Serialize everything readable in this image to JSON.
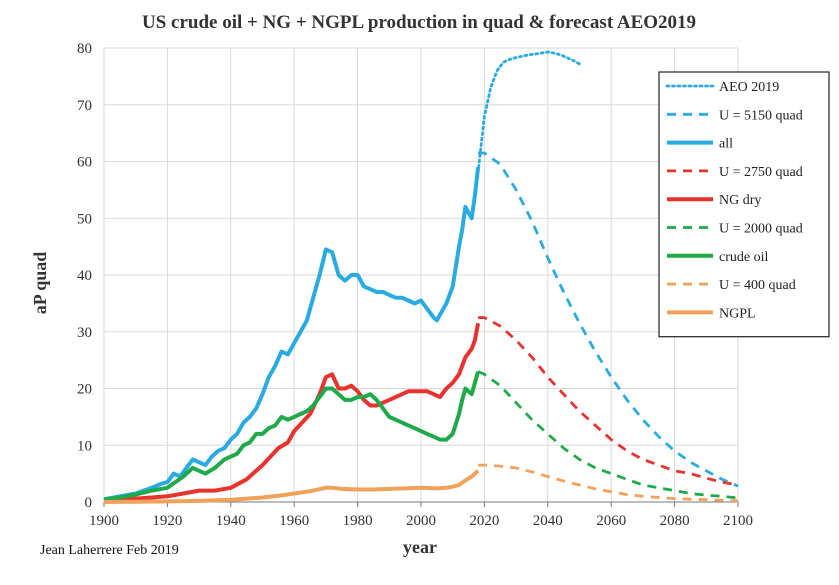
{
  "chart_data": {
    "type": "line",
    "title": "US crude oil + NG + NGPL production in quad & forecast AEO2019",
    "xlabel": "year",
    "ylabel": "aP quad",
    "credit": "Jean Laherrere Feb 2019",
    "xlim": [
      1900,
      2100
    ],
    "ylim": [
      0,
      80
    ],
    "x_ticks": [
      "1900",
      "1920",
      "1940",
      "1960",
      "1980",
      "2000",
      "2020",
      "2040",
      "2060",
      "2080",
      "2100"
    ],
    "y_ticks": [
      "0",
      "10",
      "20",
      "30",
      "40",
      "50",
      "60",
      "70",
      "80"
    ],
    "grid": true,
    "legend_position": "right",
    "series": [
      {
        "name": "AEO 2019",
        "color": "#29ABE2",
        "style": "dotted",
        "x": [
          2018,
          2019,
          2020,
          2022,
          2024,
          2026,
          2028,
          2030,
          2034,
          2038,
          2040,
          2042,
          2044,
          2046,
          2048,
          2050
        ],
        "y": [
          58,
          63,
          68,
          73,
          76,
          77.5,
          78,
          78.3,
          78.8,
          79.1,
          79.3,
          79.1,
          78.8,
          78.3,
          77.8,
          77.2
        ]
      },
      {
        "name": "U =  5150 quad",
        "color": "#29ABE2",
        "style": "dashed",
        "x": [
          2018,
          2020,
          2025,
          2030,
          2035,
          2040,
          2045,
          2050,
          2055,
          2060,
          2065,
          2070,
          2075,
          2080,
          2085,
          2090,
          2095,
          2100
        ],
        "y": [
          61.5,
          61.5,
          59.5,
          55,
          49.5,
          43,
          37,
          31.5,
          26.5,
          22,
          18,
          14.5,
          11.5,
          9,
          7,
          5.5,
          4,
          2.8
        ]
      },
      {
        "name": "all",
        "color": "#29ABE2",
        "style": "solid",
        "x": [
          1900,
          1905,
          1910,
          1915,
          1918,
          1920,
          1922,
          1924,
          1926,
          1928,
          1930,
          1932,
          1934,
          1936,
          1938,
          1940,
          1942,
          1944,
          1946,
          1948,
          1950,
          1952,
          1954,
          1956,
          1958,
          1960,
          1962,
          1964,
          1966,
          1968,
          1970,
          1972,
          1974,
          1976,
          1978,
          1980,
          1982,
          1984,
          1986,
          1988,
          1990,
          1992,
          1994,
          1996,
          1998,
          2000,
          2002,
          2004,
          2005,
          2006,
          2008,
          2010,
          2012,
          2013,
          2014,
          2015,
          2016,
          2017,
          2018
        ],
        "y": [
          0.5,
          1,
          1.5,
          2.5,
          3.2,
          3.5,
          5,
          4.5,
          6,
          7.5,
          7,
          6.5,
          8,
          9,
          9.5,
          11,
          12,
          14,
          15,
          16.5,
          19,
          22,
          24,
          26.5,
          26,
          28,
          30,
          32,
          36,
          40,
          44.5,
          44,
          40,
          39,
          40,
          40,
          38,
          37.5,
          37,
          37,
          36.5,
          36,
          36,
          35.5,
          35,
          35.5,
          34,
          32.5,
          32,
          33,
          35,
          38,
          45,
          48,
          52,
          51,
          50,
          54,
          59
        ]
      },
      {
        "name": "U = 2750 quad",
        "color": "#E8322E",
        "style": "dashed",
        "x": [
          2018,
          2020,
          2025,
          2030,
          2035,
          2040,
          2045,
          2050,
          2055,
          2060,
          2065,
          2070,
          2075,
          2080,
          2085,
          2090,
          2095,
          2100
        ],
        "y": [
          32.5,
          32.5,
          31,
          28.5,
          25.5,
          22,
          19,
          16,
          13.5,
          11,
          9,
          7.5,
          6.5,
          5.5,
          5,
          4.2,
          3.5,
          3
        ]
      },
      {
        "name": "NG dry",
        "color": "#E8322E",
        "style": "solid",
        "x": [
          1900,
          1905,
          1910,
          1915,
          1920,
          1925,
          1930,
          1935,
          1940,
          1945,
          1950,
          1955,
          1958,
          1960,
          1965,
          1968,
          1970,
          1972,
          1974,
          1976,
          1978,
          1980,
          1982,
          1984,
          1986,
          1988,
          1990,
          1994,
          1996,
          2000,
          2002,
          2004,
          2006,
          2008,
          2010,
          2012,
          2014,
          2016,
          2017,
          2018
        ],
        "y": [
          0.2,
          0.4,
          0.6,
          0.8,
          1,
          1.5,
          2,
          2,
          2.5,
          4,
          6.5,
          9.5,
          10.5,
          12.5,
          15.5,
          19,
          22,
          22.5,
          20,
          20,
          20.5,
          19.5,
          18,
          17,
          17,
          17.5,
          18,
          19,
          19.5,
          19.5,
          19.5,
          19,
          18.5,
          20,
          21,
          22.5,
          25.5,
          27,
          28.5,
          31.5
        ]
      },
      {
        "name": "U = 2000 quad",
        "color": "#1FAA4A",
        "style": "dashed",
        "x": [
          2018,
          2020,
          2025,
          2030,
          2035,
          2040,
          2045,
          2050,
          2055,
          2060,
          2065,
          2070,
          2075,
          2080,
          2085,
          2090,
          2095,
          2100
        ],
        "y": [
          23,
          22.5,
          20.5,
          17.5,
          14.5,
          12,
          9.5,
          7.5,
          6,
          5,
          4,
          3,
          2.5,
          2,
          1.5,
          1.2,
          1,
          0.7
        ]
      },
      {
        "name": "crude oil",
        "color": "#1FAA4A",
        "style": "solid",
        "x": [
          1900,
          1905,
          1910,
          1915,
          1920,
          1925,
          1928,
          1930,
          1932,
          1935,
          1938,
          1940,
          1942,
          1944,
          1946,
          1948,
          1950,
          1952,
          1954,
          1956,
          1958,
          1960,
          1962,
          1964,
          1966,
          1968,
          1970,
          1972,
          1974,
          1976,
          1978,
          1980,
          1982,
          1984,
          1986,
          1988,
          1990,
          1992,
          1994,
          1996,
          1998,
          2000,
          2002,
          2004,
          2006,
          2008,
          2010,
          2012,
          2013,
          2014,
          2015,
          2016,
          2017,
          2018
        ],
        "y": [
          0.4,
          0.8,
          1.3,
          2,
          2.5,
          4.5,
          6,
          5.5,
          5,
          6,
          7.5,
          8,
          8.5,
          10,
          10.5,
          12,
          12,
          13,
          13.5,
          15,
          14.5,
          15,
          15.5,
          16,
          17,
          18.5,
          20,
          20,
          19,
          18,
          18,
          18.5,
          18.5,
          19,
          18,
          16.5,
          15,
          14.5,
          14,
          13.5,
          13,
          12.5,
          12,
          11.5,
          11,
          11,
          12,
          15.5,
          18,
          20,
          19.5,
          19,
          21,
          23
        ]
      },
      {
        "name": "U = 400 quad",
        "color": "#F2A15A",
        "style": "dashed",
        "x": [
          2018,
          2020,
          2025,
          2030,
          2035,
          2040,
          2045,
          2050,
          2055,
          2060,
          2065,
          2070,
          2075,
          2080,
          2085,
          2090,
          2095,
          2100
        ],
        "y": [
          6.5,
          6.5,
          6.3,
          6,
          5.3,
          4.5,
          3.7,
          3,
          2.3,
          1.8,
          1.3,
          1,
          0.8,
          0.6,
          0.5,
          0.4,
          0.3,
          0.2
        ]
      },
      {
        "name": "NGPL",
        "color": "#F2A15A",
        "style": "solid",
        "x": [
          1900,
          1910,
          1920,
          1930,
          1940,
          1945,
          1950,
          1955,
          1960,
          1965,
          1970,
          1972,
          1975,
          1980,
          1985,
          1990,
          1995,
          2000,
          2005,
          2008,
          2010,
          2012,
          2014,
          2016,
          2018
        ],
        "y": [
          0,
          0.05,
          0.1,
          0.2,
          0.4,
          0.6,
          0.8,
          1.1,
          1.5,
          1.9,
          2.5,
          2.5,
          2.3,
          2.2,
          2.2,
          2.3,
          2.4,
          2.5,
          2.4,
          2.5,
          2.7,
          3,
          3.8,
          4.5,
          5.5
        ]
      }
    ]
  }
}
